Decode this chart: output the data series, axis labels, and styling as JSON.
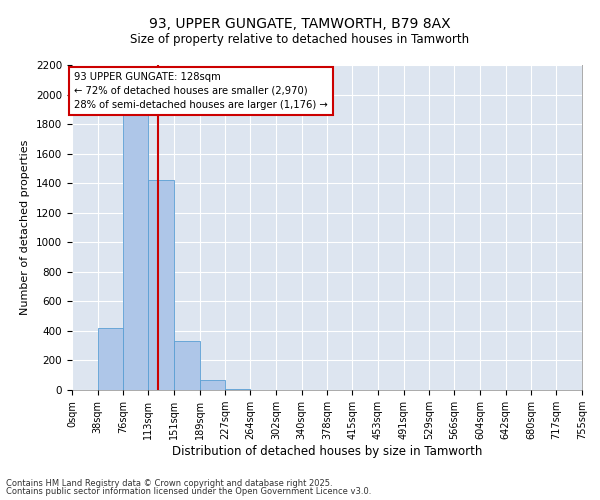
{
  "title1": "93, UPPER GUNGATE, TAMWORTH, B79 8AX",
  "title2": "Size of property relative to detached houses in Tamworth",
  "xlabel": "Distribution of detached houses by size in Tamworth",
  "ylabel": "Number of detached properties",
  "footnote1": "Contains HM Land Registry data © Crown copyright and database right 2025.",
  "footnote2": "Contains public sector information licensed under the Open Government Licence v3.0.",
  "annotation_line1": "93 UPPER GUNGATE: 128sqm",
  "annotation_line2": "← 72% of detached houses are smaller (2,970)",
  "annotation_line3": "28% of semi-detached houses are larger (1,176) →",
  "property_size": 128,
  "bin_edges": [
    0,
    38,
    76,
    113,
    151,
    189,
    227,
    264,
    302,
    340,
    378,
    415,
    453,
    491,
    529,
    566,
    604,
    642,
    680,
    717,
    755
  ],
  "bin_labels": [
    "0sqm",
    "38sqm",
    "76sqm",
    "113sqm",
    "151sqm",
    "189sqm",
    "227sqm",
    "264sqm",
    "302sqm",
    "340sqm",
    "378sqm",
    "415sqm",
    "453sqm",
    "491sqm",
    "529sqm",
    "566sqm",
    "604sqm",
    "642sqm",
    "680sqm",
    "717sqm",
    "755sqm"
  ],
  "counts": [
    0,
    420,
    1950,
    1420,
    330,
    70,
    10,
    0,
    0,
    0,
    0,
    0,
    0,
    0,
    0,
    0,
    0,
    0,
    0,
    0
  ],
  "bar_color": "#aec6e8",
  "bar_edge_color": "#5a9fd4",
  "vline_color": "#cc0000",
  "vline_x": 128,
  "annotation_box_edge": "#cc0000",
  "background_color": "#dde5f0",
  "ylim": [
    0,
    2200
  ],
  "yticks": [
    0,
    200,
    400,
    600,
    800,
    1000,
    1200,
    1400,
    1600,
    1800,
    2000,
    2200
  ],
  "figsize": [
    6.0,
    5.0
  ],
  "dpi": 100
}
